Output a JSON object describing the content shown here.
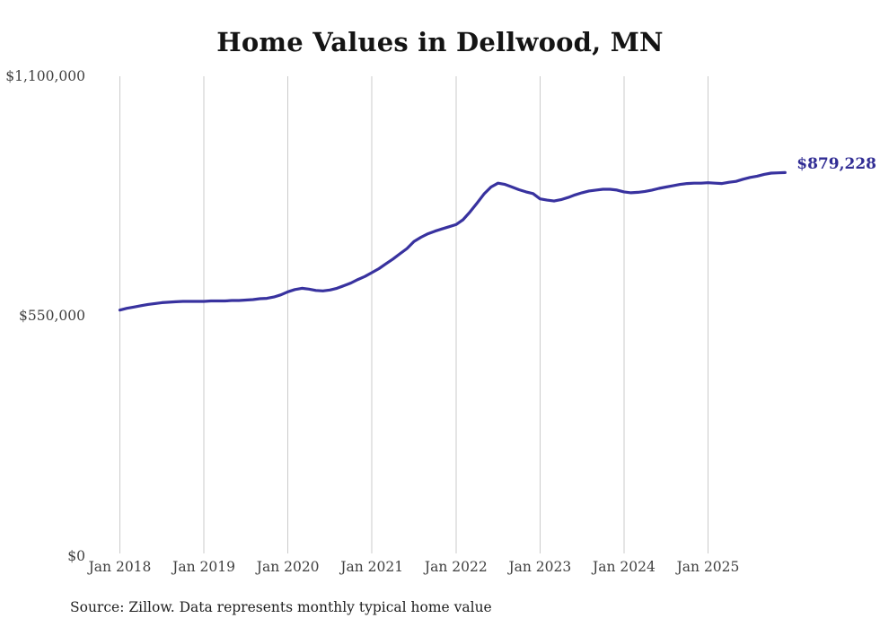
{
  "title": "Home Values in Dellwood, MN",
  "source_note": "Source: Zillow. Data represents monthly typical home value",
  "colors": {
    "line": "#38329f",
    "final_label": "#312d94",
    "grid": "#cbcbcb",
    "title_text": "#141414",
    "axis_text": "#3f3f3f",
    "source_text": "#1f1f1f",
    "background": "#ffffff"
  },
  "chart_data": {
    "type": "line",
    "title": "Home Values in Dellwood, MN",
    "series_name": "Monthly typical home value",
    "frequency": "monthly",
    "start_month": "Jan 2018",
    "end_month": "Dec 2025",
    "x_tick_labels": [
      "Jan 2018",
      "Jan 2019",
      "Jan 2020",
      "Jan 2021",
      "Jan 2022",
      "Jan 2023",
      "Jan 2024",
      "Jan 2025"
    ],
    "y_ticks": [
      {
        "label": "$0",
        "value": 0
      },
      {
        "label": "$550,000",
        "value": 550000
      },
      {
        "label": "$1,100,000",
        "value": 1100000
      }
    ],
    "ylim": [
      0,
      1100000
    ],
    "grid": "vertical-only",
    "legend": "none",
    "final_label": "$879,228",
    "final_value": 879228,
    "values": [
      564000,
      568000,
      571000,
      574000,
      577000,
      579000,
      581000,
      582000,
      583000,
      584000,
      584000,
      584000,
      584000,
      585000,
      585000,
      585000,
      586000,
      586000,
      587000,
      588000,
      590000,
      591000,
      594000,
      599000,
      606000,
      611000,
      614000,
      612000,
      609000,
      608000,
      610000,
      614000,
      620000,
      626000,
      634000,
      641000,
      650000,
      659000,
      670000,
      681000,
      693000,
      705000,
      721000,
      731000,
      739000,
      745000,
      750000,
      755000,
      760000,
      771000,
      789000,
      809000,
      830000,
      846000,
      855000,
      852000,
      846000,
      840000,
      835000,
      831000,
      819000,
      816000,
      814000,
      817000,
      822000,
      828000,
      833000,
      837000,
      839000,
      841000,
      841000,
      839000,
      835000,
      833000,
      834000,
      836000,
      839000,
      843000,
      846000,
      849000,
      852000,
      854000,
      855000,
      855000,
      856000,
      855000,
      854000,
      857000,
      859000,
      864000,
      868000,
      871000,
      875000,
      878000,
      878500,
      879228
    ]
  }
}
